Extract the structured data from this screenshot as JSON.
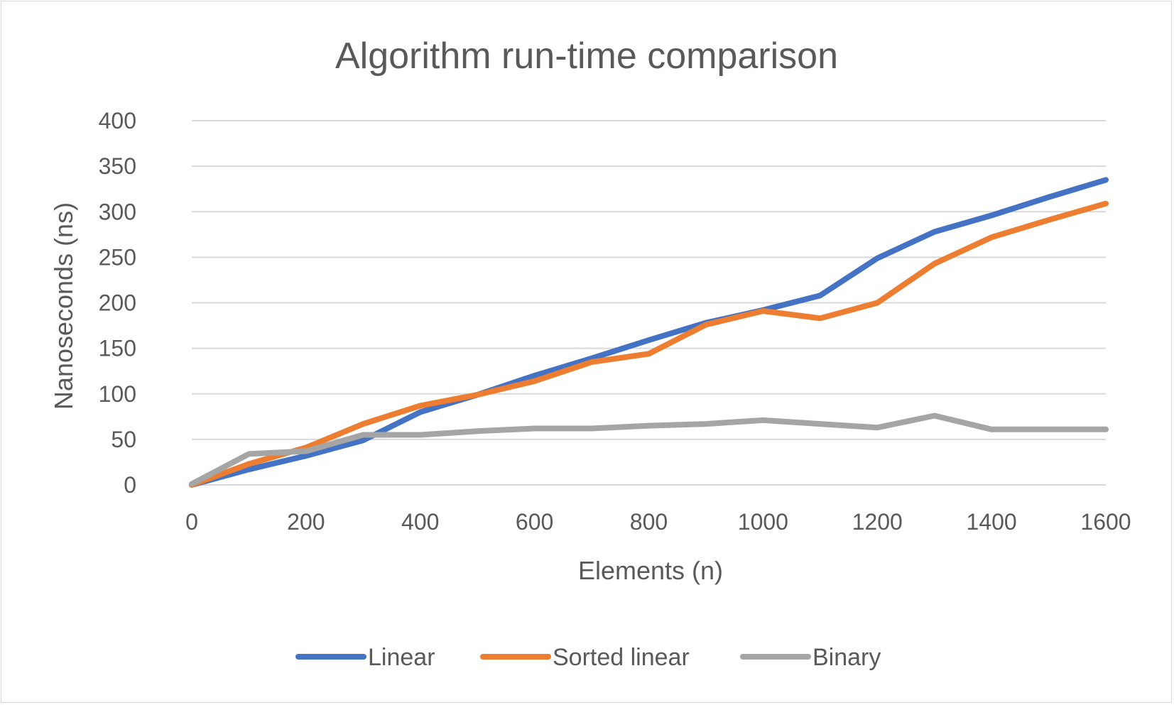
{
  "chart_data": {
    "type": "line",
    "title": "Algorithm run-time comparison",
    "xlabel": "Elements (n)",
    "ylabel": "Nanoseconds (ns)",
    "xlim": [
      0,
      1600
    ],
    "ylim": [
      0,
      400
    ],
    "x_ticks": [
      "0",
      "200",
      "400",
      "600",
      "800",
      "1000",
      "1200",
      "1400",
      "1600"
    ],
    "y_ticks": [
      "0",
      "50",
      "100",
      "150",
      "200",
      "250",
      "300",
      "350",
      "400"
    ],
    "grid": true,
    "legend_position": "bottom",
    "x": [
      0,
      100,
      200,
      300,
      400,
      500,
      600,
      700,
      800,
      900,
      1000,
      1100,
      1200,
      1300,
      1400,
      1500,
      1600
    ],
    "series": [
      {
        "name": "Linear",
        "color": "#4472c4",
        "values": [
          0,
          17,
          32,
          49,
          80,
          99,
          120,
          139,
          159,
          178,
          192,
          208,
          249,
          278,
          296,
          316,
          335
        ]
      },
      {
        "name": "Sorted linear",
        "color": "#ed7d31",
        "values": [
          0,
          23,
          41,
          67,
          87,
          99,
          114,
          135,
          144,
          176,
          191,
          183,
          200,
          243,
          272,
          291,
          309
        ]
      },
      {
        "name": "Binary",
        "color": "#a5a5a5",
        "values": [
          1,
          34,
          37,
          55,
          55,
          59,
          62,
          62,
          65,
          67,
          71,
          67,
          63,
          76,
          61,
          61,
          61
        ]
      }
    ]
  }
}
